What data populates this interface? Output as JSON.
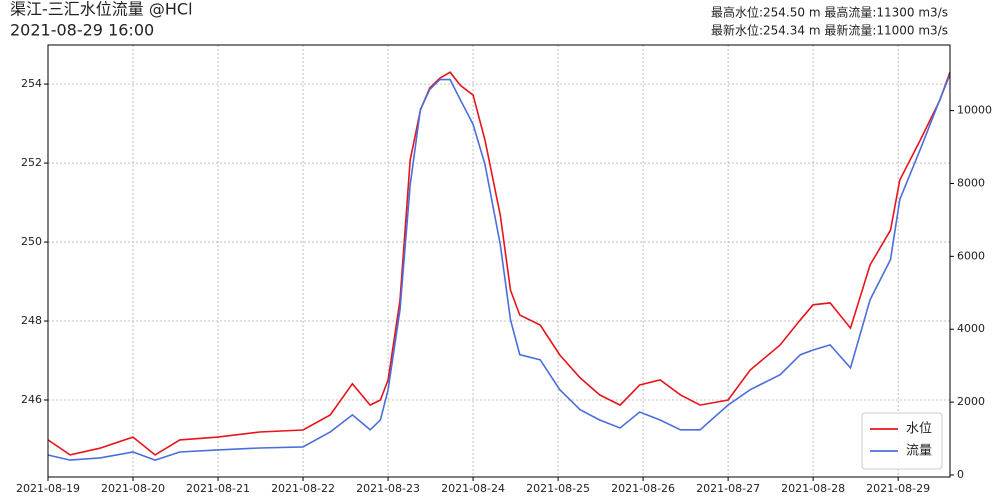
{
  "chart_data": {
    "type": "line",
    "title": "渠江-三汇水位流量 @HCl",
    "subtitle": "2021-08-29 16:00",
    "annotations": [
      "最高水位:254.50 m 最高流量:11300 m3/s",
      "最新水位:254.34 m 最新流量:11000 m3/s"
    ],
    "x": [
      0,
      0.26,
      0.61,
      1.0,
      1.26,
      1.55,
      2.0,
      2.49,
      3.0,
      3.32,
      3.58,
      3.79,
      3.91,
      4.0,
      4.14,
      4.26,
      4.38,
      4.49,
      4.61,
      4.73,
      4.85,
      5.0,
      5.14,
      5.32,
      5.44,
      5.55,
      5.79,
      6.02,
      6.26,
      6.49,
      6.73,
      6.96,
      7.2,
      7.44,
      7.67,
      8.0,
      8.26,
      8.61,
      8.85,
      9.0,
      9.2,
      9.44,
      9.67,
      9.91,
      10.02,
      10.26,
      10.49,
      10.61
    ],
    "xlim": [
      0,
      10.61
    ],
    "xticks": [
      {
        "value": 0,
        "label": "2021-08-19"
      },
      {
        "value": 1,
        "label": "2021-08-20"
      },
      {
        "value": 2,
        "label": "2021-08-21"
      },
      {
        "value": 3,
        "label": "2021-08-22"
      },
      {
        "value": 4,
        "label": "2021-08-23"
      },
      {
        "value": 5,
        "label": "2021-08-24"
      },
      {
        "value": 6,
        "label": "2021-08-25"
      },
      {
        "value": 7,
        "label": "2021-08-26"
      },
      {
        "value": 8,
        "label": "2021-08-27"
      },
      {
        "value": 9,
        "label": "2021-08-28"
      },
      {
        "value": 10,
        "label": "2021-08-29"
      }
    ],
    "ylim": [
      244.05,
      254.99
    ],
    "yticks": [
      246,
      248,
      250,
      252,
      254
    ],
    "y2lim": [
      -55,
      11800
    ],
    "y2ticks": [
      0,
      2000,
      4000,
      6000,
      8000,
      10000
    ],
    "grid": true,
    "legend": "lower right",
    "series": [
      {
        "name": "水位",
        "color": "#e8141c",
        "values": [
          244.99,
          244.61,
          244.78,
          245.06,
          244.61,
          244.99,
          245.06,
          245.19,
          245.24,
          245.62,
          246.41,
          245.87,
          246.0,
          246.51,
          248.53,
          252.08,
          253.34,
          253.9,
          254.15,
          254.3,
          253.97,
          253.72,
          252.58,
          250.68,
          248.78,
          248.15,
          247.9,
          247.14,
          246.56,
          246.13,
          245.87,
          246.38,
          246.51,
          246.13,
          245.87,
          246.0,
          246.76,
          247.39,
          248.03,
          248.41,
          248.46,
          247.82,
          249.42,
          250.3,
          251.57,
          252.58,
          253.59,
          254.3
        ]
      },
      {
        "name": "流量",
        "color": "#4a6fdc",
        "axis": "y2",
        "values": [
          550,
          410,
          470,
          630,
          410,
          630,
          690,
          740,
          770,
          1180,
          1650,
          1240,
          1510,
          2340,
          4530,
          7970,
          10030,
          10580,
          10850,
          10850,
          10300,
          9620,
          8520,
          6320,
          4260,
          3300,
          3160,
          2340,
          1790,
          1510,
          1290,
          1730,
          1510,
          1240,
          1240,
          1920,
          2340,
          2750,
          3300,
          3430,
          3570,
          2940,
          4810,
          5910,
          7560,
          8930,
          10300,
          10990
        ]
      }
    ]
  }
}
